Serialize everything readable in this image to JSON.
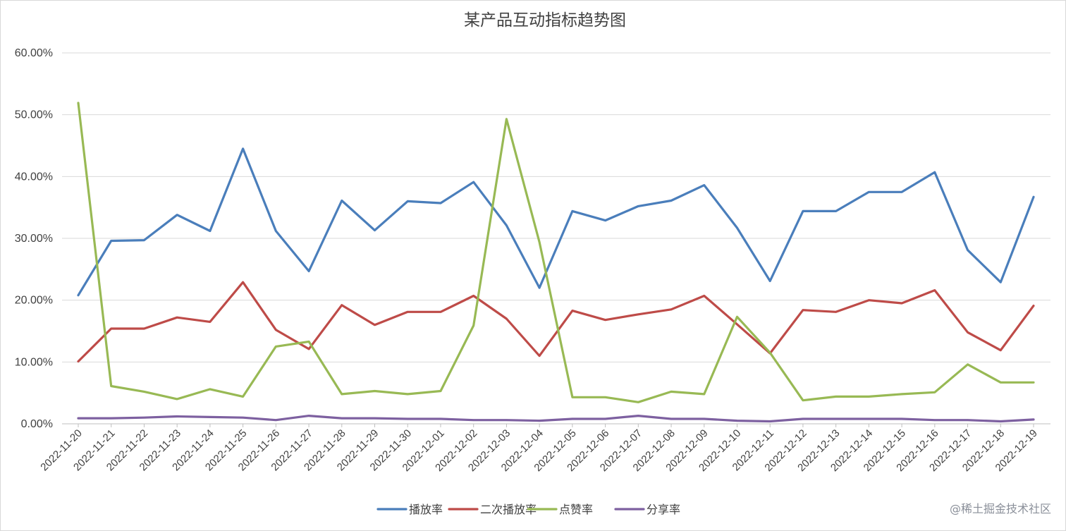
{
  "chart_data": {
    "type": "line",
    "title": "某产品互动指标趋势图",
    "x": [
      "2022-11-20",
      "2022-11-21",
      "2022-11-22",
      "2022-11-23",
      "2022-11-24",
      "2022-11-25",
      "2022-11-26",
      "2022-11-27",
      "2022-11-28",
      "2022-11-29",
      "2022-11-30",
      "2022-12-01",
      "2022-12-02",
      "2022-12-03",
      "2022-12-04",
      "2022-12-05",
      "2022-12-06",
      "2022-12-07",
      "2022-12-08",
      "2022-12-09",
      "2022-12-10",
      "2022-12-11",
      "2022-12-12",
      "2022-12-13",
      "2022-12-14",
      "2022-12-15",
      "2022-12-16",
      "2022-12-17",
      "2022-12-18",
      "2022-12-19"
    ],
    "ylim": [
      0,
      60
    ],
    "yticks": [
      "0.00%",
      "10.00%",
      "20.00%",
      "30.00%",
      "40.00%",
      "50.00%",
      "60.00%"
    ],
    "grid": true,
    "legend_position": "bottom",
    "series": [
      {
        "name": "播放率",
        "color": "#4a7ebb",
        "values": [
          20.8,
          29.6,
          29.7,
          33.8,
          31.2,
          44.5,
          31.2,
          24.7,
          36.1,
          31.3,
          36.0,
          35.7,
          39.1,
          32.1,
          22.0,
          34.4,
          32.9,
          35.2,
          36.1,
          38.6,
          31.7,
          23.1,
          34.4,
          34.4,
          37.5,
          37.5,
          40.7,
          28.1,
          22.9,
          36.7
        ]
      },
      {
        "name": "二次播放率",
        "color": "#be4b48",
        "values": [
          10.1,
          15.4,
          15.4,
          17.2,
          16.5,
          22.9,
          15.2,
          12.1,
          19.2,
          16.0,
          18.1,
          18.1,
          20.7,
          17.0,
          11.0,
          18.3,
          16.8,
          17.7,
          18.5,
          20.7,
          16.1,
          11.4,
          18.4,
          18.1,
          20.0,
          19.5,
          21.6,
          14.8,
          11.9,
          19.1
        ]
      },
      {
        "name": "点赞率",
        "color": "#98b954",
        "values": [
          51.9,
          6.1,
          5.2,
          4.0,
          5.6,
          4.4,
          12.5,
          13.3,
          4.8,
          5.3,
          4.8,
          5.3,
          15.9,
          49.3,
          29.4,
          4.3,
          4.3,
          3.5,
          5.2,
          4.8,
          17.3,
          11.5,
          3.8,
          4.4,
          4.4,
          4.8,
          5.1,
          9.6,
          6.7,
          6.7
        ]
      },
      {
        "name": "分享率",
        "color": "#7d60a0",
        "values": [
          0.9,
          0.9,
          1.0,
          1.2,
          1.1,
          1.0,
          0.6,
          1.3,
          0.9,
          0.9,
          0.8,
          0.8,
          0.6,
          0.6,
          0.5,
          0.8,
          0.8,
          1.3,
          0.8,
          0.8,
          0.5,
          0.4,
          0.8,
          0.8,
          0.8,
          0.8,
          0.6,
          0.6,
          0.4,
          0.7
        ]
      }
    ]
  },
  "watermark": "@稀土掘金技术社区"
}
